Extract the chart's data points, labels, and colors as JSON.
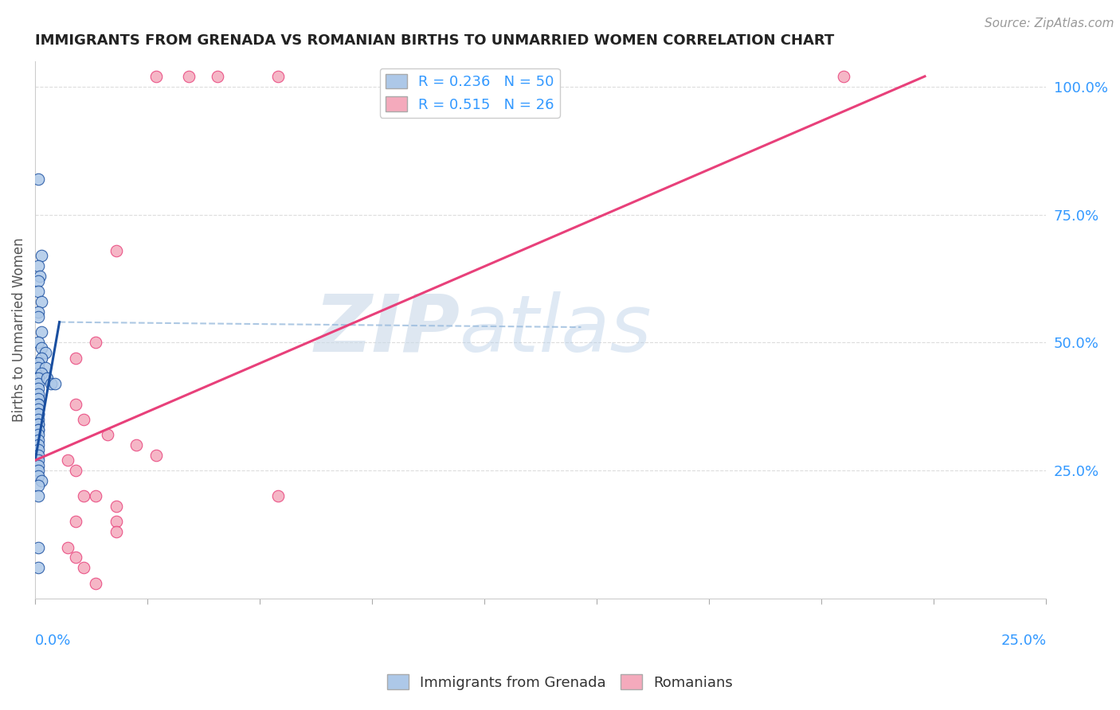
{
  "title": "IMMIGRANTS FROM GRENADA VS ROMANIAN BIRTHS TO UNMARRIED WOMEN CORRELATION CHART",
  "source": "Source: ZipAtlas.com",
  "ylabel": "Births to Unmarried Women",
  "ylabel_right_ticks": [
    "100.0%",
    "75.0%",
    "50.0%",
    "25.0%"
  ],
  "ylabel_right_vals": [
    1.0,
    0.75,
    0.5,
    0.25
  ],
  "bottom_legend1": "Immigrants from Grenada",
  "bottom_legend2": "Romanians",
  "blue_color": "#adc8e8",
  "blue_line_color": "#1a4fa0",
  "pink_color": "#f4aabc",
  "pink_line_color": "#e8407a",
  "watermark_zip": "ZIP",
  "watermark_atlas": "atlas",
  "xmin": 0.0,
  "xmax": 0.25,
  "ymin": 0.0,
  "ymax": 1.05,
  "blue_scatter_x": [
    0.0008,
    0.0015,
    0.0008,
    0.0012,
    0.0008,
    0.0008,
    0.0015,
    0.0008,
    0.0008,
    0.0015,
    0.0008,
    0.0015,
    0.0025,
    0.0015,
    0.0008,
    0.0008,
    0.0025,
    0.0015,
    0.0008,
    0.0008,
    0.0008,
    0.0008,
    0.0008,
    0.0008,
    0.0008,
    0.0008,
    0.0008,
    0.0008,
    0.0008,
    0.0008,
    0.0008,
    0.0008,
    0.0008,
    0.0008,
    0.0008,
    0.0008,
    0.0008,
    0.0008,
    0.0008,
    0.0008,
    0.0008,
    0.0008,
    0.003,
    0.004,
    0.005,
    0.0015,
    0.0008,
    0.0008,
    0.0008,
    0.0008
  ],
  "blue_scatter_y": [
    0.82,
    0.67,
    0.65,
    0.63,
    0.62,
    0.6,
    0.58,
    0.56,
    0.55,
    0.52,
    0.5,
    0.49,
    0.48,
    0.47,
    0.46,
    0.45,
    0.45,
    0.44,
    0.43,
    0.42,
    0.41,
    0.4,
    0.39,
    0.38,
    0.38,
    0.37,
    0.36,
    0.36,
    0.35,
    0.34,
    0.34,
    0.33,
    0.33,
    0.32,
    0.31,
    0.3,
    0.29,
    0.28,
    0.27,
    0.26,
    0.25,
    0.24,
    0.43,
    0.42,
    0.42,
    0.23,
    0.22,
    0.2,
    0.1,
    0.06
  ],
  "pink_scatter_x": [
    0.03,
    0.038,
    0.045,
    0.06,
    0.2,
    0.02,
    0.015,
    0.01,
    0.01,
    0.012,
    0.018,
    0.025,
    0.03,
    0.008,
    0.01,
    0.012,
    0.015,
    0.02,
    0.02,
    0.008,
    0.01,
    0.06,
    0.01,
    0.012,
    0.015,
    0.02
  ],
  "pink_scatter_y": [
    1.02,
    1.02,
    1.02,
    1.02,
    1.02,
    0.68,
    0.5,
    0.47,
    0.38,
    0.35,
    0.32,
    0.3,
    0.28,
    0.27,
    0.25,
    0.2,
    0.2,
    0.18,
    0.15,
    0.1,
    0.08,
    0.2,
    0.15,
    0.06,
    0.03,
    0.13
  ],
  "blue_line_x0": 0.0,
  "blue_line_x1": 0.006,
  "blue_line_y0": 0.27,
  "blue_line_y1": 0.54,
  "dash_line_x0": 0.006,
  "dash_line_x1": 0.135,
  "dash_line_y0": 0.54,
  "dash_line_y1": 0.53,
  "pink_line_x0": 0.0,
  "pink_line_x1": 0.22,
  "pink_line_y0": 0.27,
  "pink_line_y1": 1.02
}
